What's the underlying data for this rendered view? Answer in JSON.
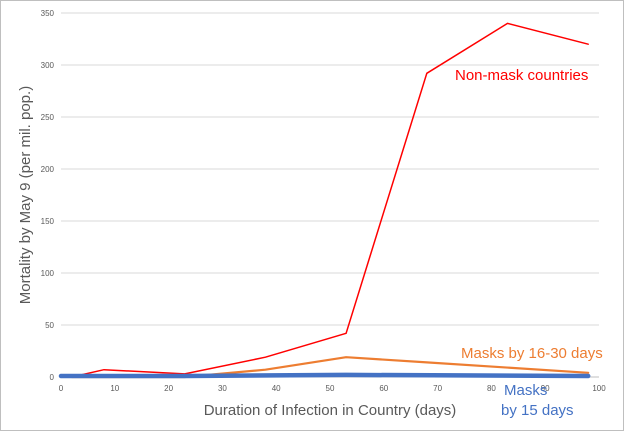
{
  "chart_data": {
    "type": "line",
    "xlabel": "Duration of Infection  in Country (days)",
    "ylabel": "Mortality by May 9 (per mil. pop.)",
    "xlim": [
      0,
      100
    ],
    "ylim": [
      0,
      350
    ],
    "xticks": [
      0,
      10,
      20,
      30,
      40,
      50,
      60,
      70,
      80,
      90,
      100
    ],
    "yticks": [
      0,
      50,
      100,
      150,
      200,
      250,
      300,
      350
    ],
    "grid": "horizontal",
    "legend": "none",
    "series": [
      {
        "name": "Non-mask countries",
        "color": "#ff0000",
        "points": [
          [
            2,
            0
          ],
          [
            8,
            7
          ],
          [
            23,
            3
          ],
          [
            38,
            19
          ],
          [
            53,
            42
          ],
          [
            68,
            292
          ],
          [
            83,
            340
          ],
          [
            98,
            320
          ]
        ]
      },
      {
        "name": "Masks by 16-30 days",
        "color": "#ed7d31",
        "points": [
          [
            2,
            0
          ],
          [
            23,
            0
          ],
          [
            38,
            7
          ],
          [
            53,
            19
          ],
          [
            68,
            14
          ],
          [
            98,
            4
          ]
        ]
      },
      {
        "name": "Masks by 15 days",
        "label_lines": [
          "Masks",
          "by 15 days"
        ],
        "color": "#4472c4",
        "points": [
          [
            0,
            1
          ],
          [
            23,
            1
          ],
          [
            53,
            2
          ],
          [
            98,
            1
          ]
        ]
      }
    ]
  }
}
